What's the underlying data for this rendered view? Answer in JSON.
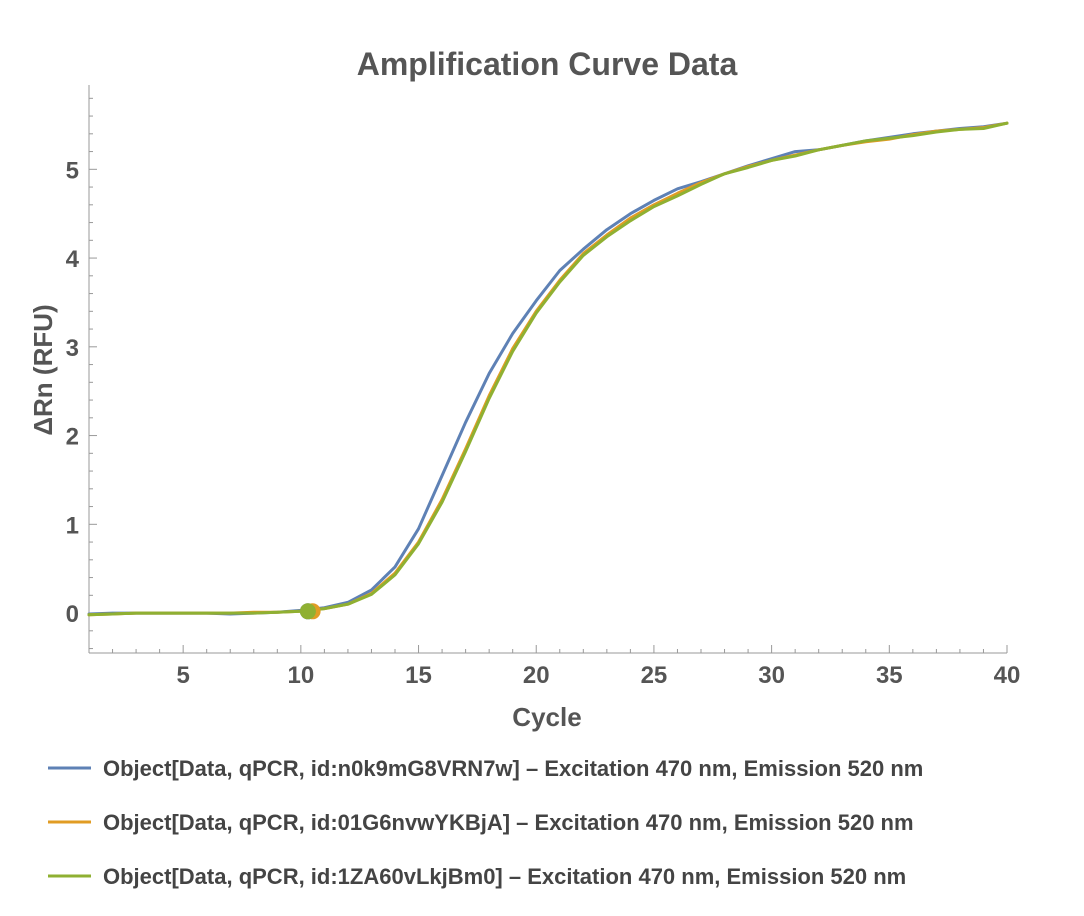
{
  "chart_data": {
    "type": "line",
    "title": "Amplification Curve Data",
    "xlabel": "Cycle",
    "ylabel": "ΔRn (RFU)",
    "xlim": [
      1,
      40
    ],
    "ylim": [
      -0.45,
      5.95
    ],
    "x_ticks": [
      5,
      10,
      15,
      20,
      25,
      30,
      35,
      40
    ],
    "y_ticks": [
      0,
      1,
      2,
      3,
      4,
      5
    ],
    "legend_position": "bottom",
    "grid": false,
    "x": [
      1,
      2,
      3,
      4,
      5,
      6,
      7,
      8,
      9,
      10,
      11,
      12,
      13,
      14,
      15,
      16,
      17,
      18,
      19,
      20,
      21,
      22,
      23,
      24,
      25,
      26,
      27,
      28,
      29,
      30,
      31,
      32,
      33,
      34,
      35,
      36,
      37,
      38,
      39,
      40
    ],
    "series": [
      {
        "name": "Object[Data, qPCR, id:n0k9mG8VRN7w] – Excitation 470 nm, Emission 520 nm",
        "color": "#5E81B5",
        "values": [
          -0.01,
          0.0,
          0.0,
          0.0,
          0.0,
          0.0,
          -0.01,
          0.0,
          0.01,
          0.03,
          0.06,
          0.12,
          0.26,
          0.52,
          0.95,
          1.55,
          2.15,
          2.7,
          3.15,
          3.52,
          3.86,
          4.1,
          4.32,
          4.5,
          4.65,
          4.78,
          4.86,
          4.95,
          5.04,
          5.12,
          5.2,
          5.22,
          5.27,
          5.32,
          5.36,
          5.4,
          5.43,
          5.46,
          5.48,
          5.52
        ]
      },
      {
        "name": "Object[Data, qPCR, id:01G6nvwYKBjA] – Excitation 470 nm, Emission 520 nm",
        "color": "#E19C24",
        "values": [
          -0.02,
          -0.01,
          0.0,
          0.0,
          0.0,
          0.0,
          0.0,
          0.01,
          0.01,
          0.02,
          0.05,
          0.1,
          0.22,
          0.45,
          0.8,
          1.28,
          1.85,
          2.45,
          2.98,
          3.4,
          3.75,
          4.05,
          4.26,
          4.45,
          4.6,
          4.73,
          4.85,
          4.95,
          5.03,
          5.1,
          5.16,
          5.22,
          5.27,
          5.31,
          5.34,
          5.39,
          5.43,
          5.45,
          5.47,
          5.52
        ]
      },
      {
        "name": "Object[Data, qPCR, id:1ZA60vLkjBm0] – Excitation 470 nm, Emission 520 nm",
        "color": "#8FB032",
        "values": [
          -0.02,
          -0.01,
          0.0,
          0.0,
          0.0,
          0.0,
          0.0,
          0.0,
          0.01,
          0.02,
          0.05,
          0.1,
          0.21,
          0.43,
          0.78,
          1.25,
          1.82,
          2.42,
          2.95,
          3.38,
          3.73,
          4.03,
          4.24,
          4.42,
          4.58,
          4.7,
          4.83,
          4.95,
          5.02,
          5.1,
          5.15,
          5.22,
          5.27,
          5.32,
          5.35,
          5.38,
          5.42,
          5.45,
          5.46,
          5.52
        ]
      }
    ],
    "markers": [
      {
        "series": 0,
        "x": 10.3,
        "y": 0.02
      },
      {
        "series": 1,
        "x": 10.5,
        "y": 0.02
      },
      {
        "series": 2,
        "x": 10.3,
        "y": 0.02
      }
    ]
  }
}
